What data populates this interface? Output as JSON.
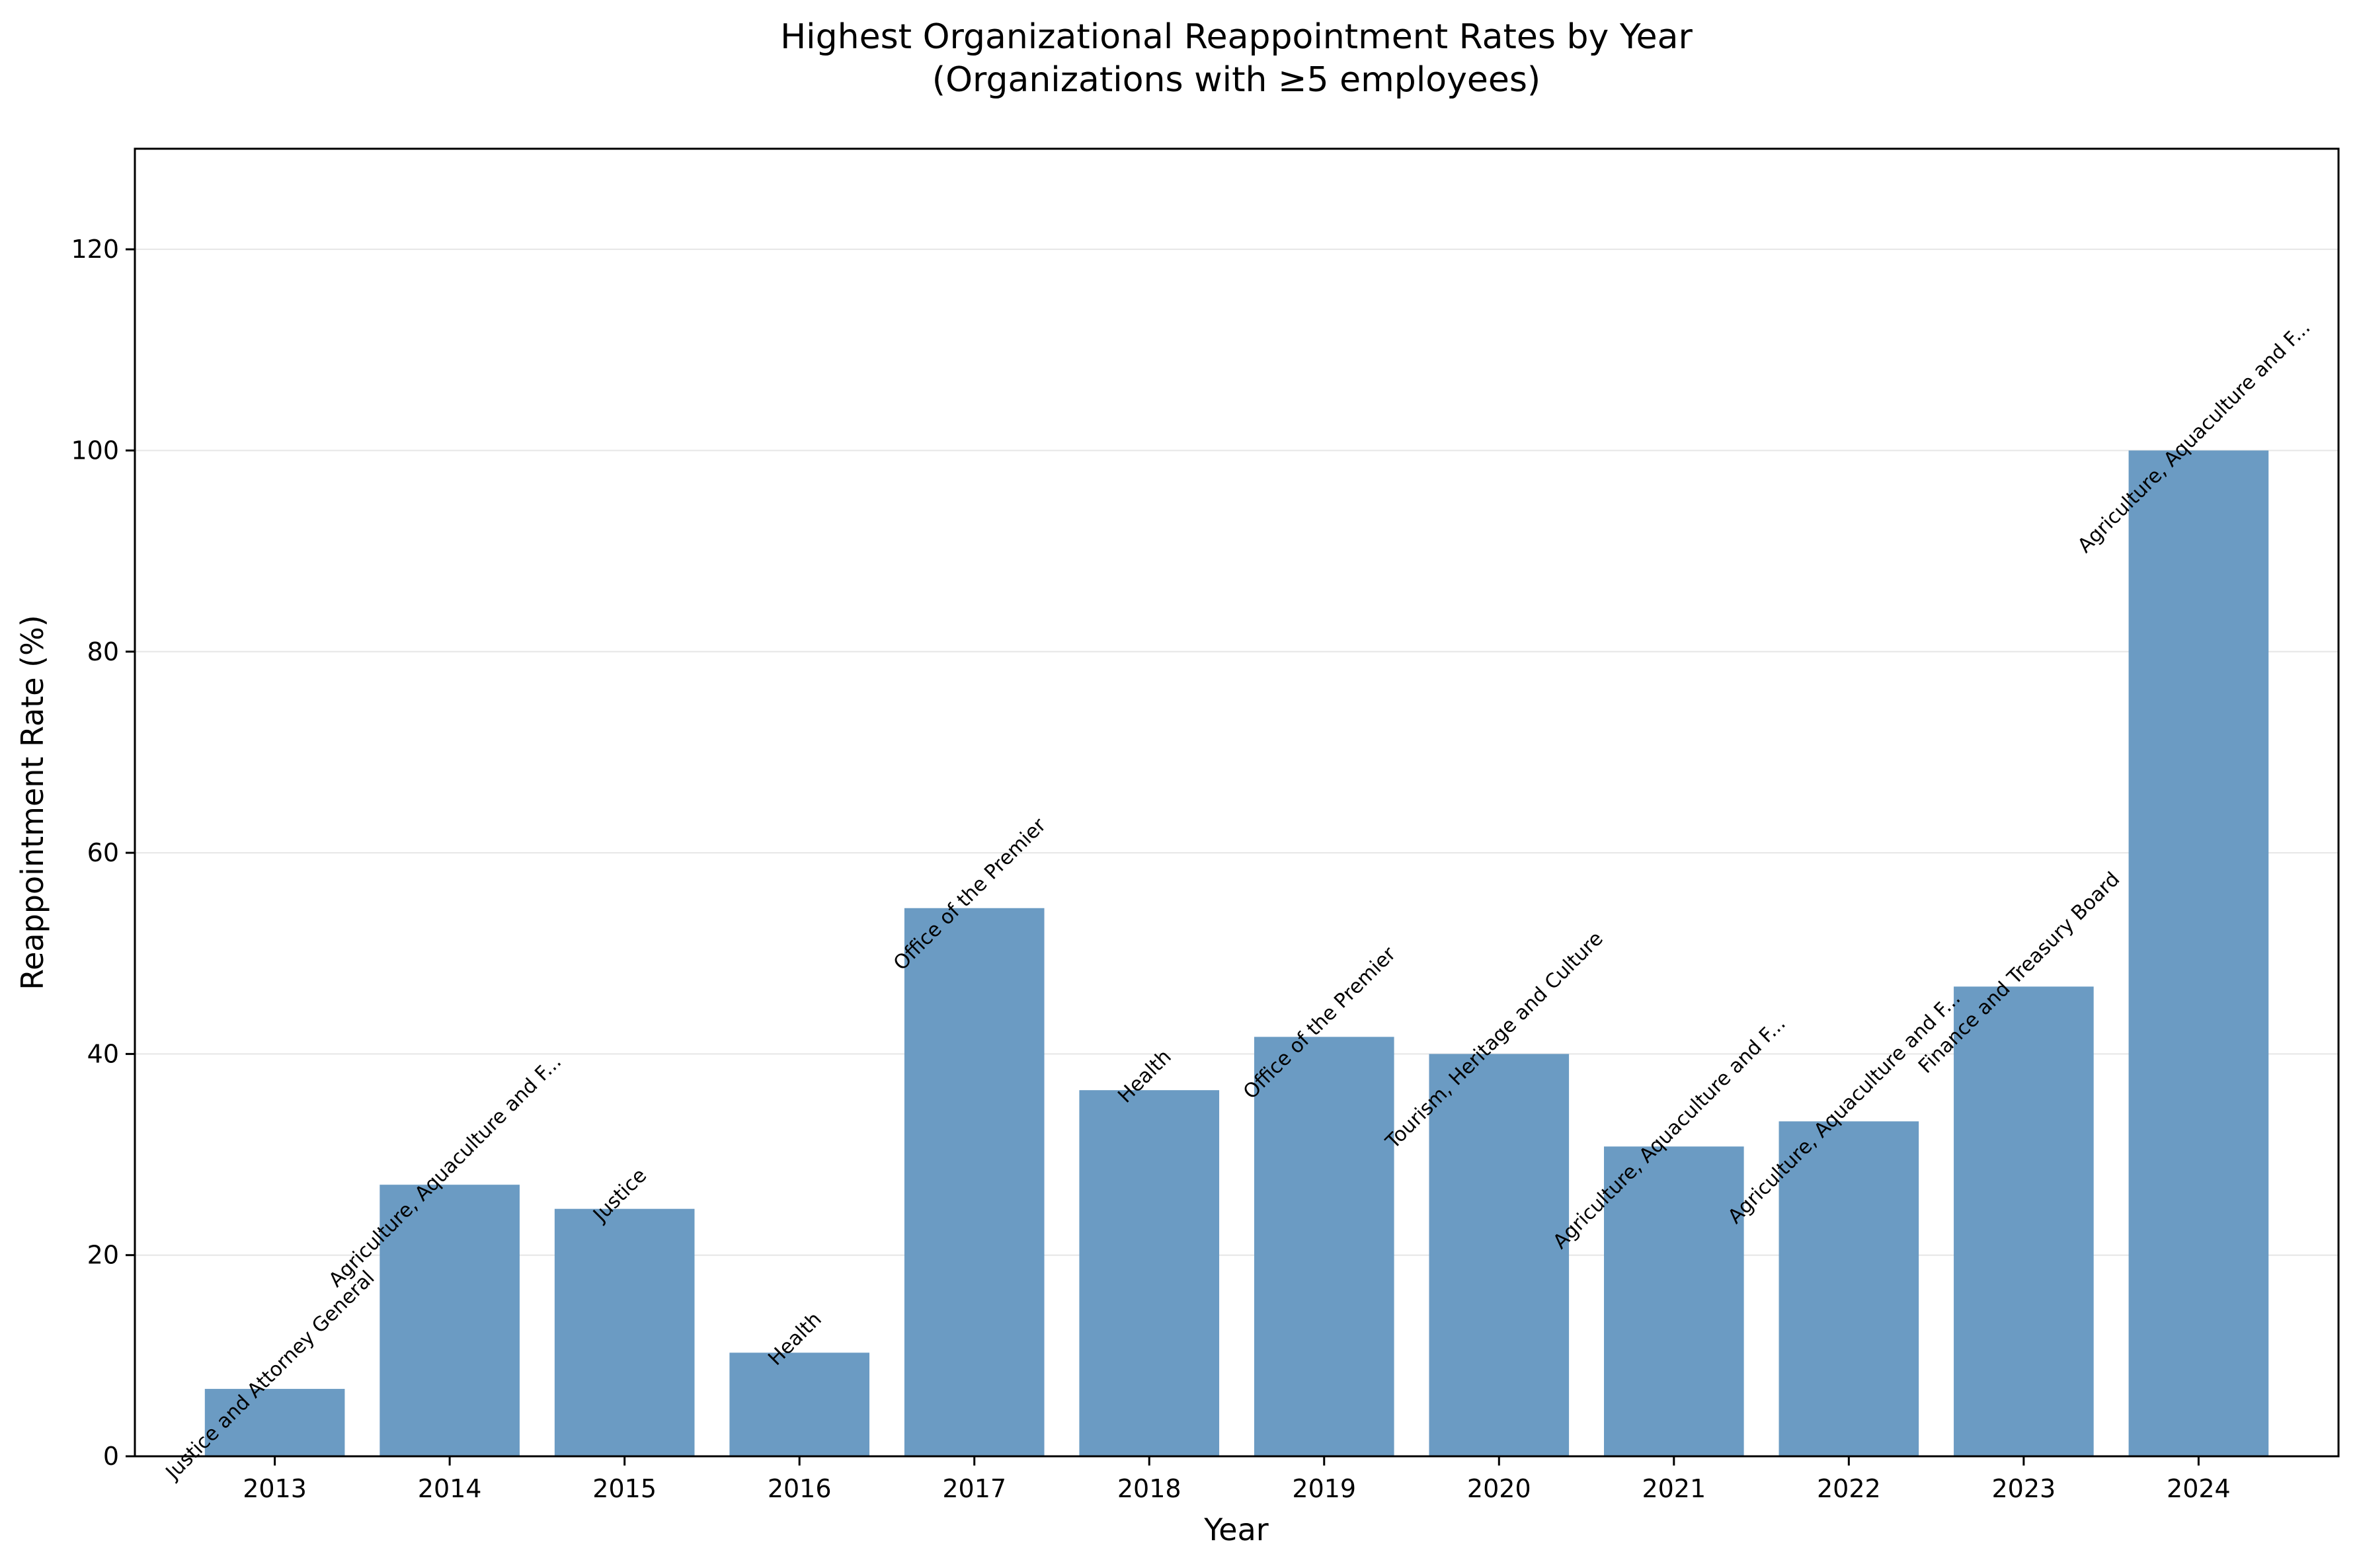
{
  "chart_data": {
    "type": "bar",
    "title": "Highest Organizational Reappointment Rates by Year",
    "subtitle": "(Organizations with ≥5 employees)",
    "xlabel": "Year",
    "ylabel": "Reappointment Rate (%)",
    "categories": [
      "2013",
      "2014",
      "2015",
      "2016",
      "2017",
      "2018",
      "2019",
      "2020",
      "2021",
      "2022",
      "2023",
      "2024"
    ],
    "values": [
      6.7,
      27.0,
      24.6,
      10.3,
      54.5,
      36.4,
      41.7,
      40.0,
      30.8,
      33.3,
      46.7,
      100.0
    ],
    "bar_labels": [
      "Justice and Attorney General",
      "Agriculture, Aquaculture and F...",
      "Justice",
      "Health",
      "Office of the Premier",
      "Health",
      "Office of the Premier",
      "Tourism, Heritage and Culture",
      "Agriculture, Aquaculture and F...",
      "Agriculture, Aquaculture and F...",
      "Finance and Treasury Board",
      "Agriculture, Aquaculture and F..."
    ],
    "ylim": [
      0,
      130
    ],
    "yticks": [
      0,
      20,
      40,
      60,
      80,
      100,
      120
    ],
    "grid": "horizontal",
    "bar_color": "#6b9bc3"
  }
}
